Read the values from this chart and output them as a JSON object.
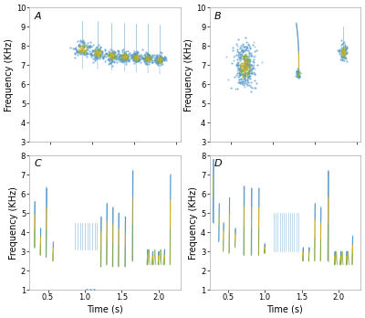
{
  "fig_width": 4.0,
  "fig_height": 3.48,
  "dpi": 100,
  "background_color": "#ffffff",
  "panel_label_fontsize": 8,
  "axis_label_fontsize": 7,
  "tick_fontsize": 6,
  "colors": {
    "blue": "#5599cc",
    "green": "#88aa44",
    "yellow": "#ccaa22",
    "orange": "#cc7722",
    "light_blue": "#99bbdd"
  },
  "panels": [
    {
      "label": "A",
      "xlim": [
        0.25,
        2.05
      ],
      "ylim": [
        3,
        10
      ],
      "xticks": [
        0.5,
        1.0,
        1.5,
        2.0
      ],
      "yticks": [
        3,
        4,
        5,
        6,
        7,
        8,
        9,
        10
      ],
      "show_xlabel": false,
      "show_ylabel": true
    },
    {
      "label": "B",
      "xlim": [
        0.25,
        2.05
      ],
      "ylim": [
        3,
        10
      ],
      "xticks": [
        0.5,
        1.0,
        1.5,
        2.0
      ],
      "yticks": [
        3,
        4,
        5,
        6,
        7,
        8,
        9,
        10
      ],
      "show_xlabel": false,
      "show_ylabel": true
    },
    {
      "label": "C",
      "xlim": [
        0.25,
        2.3
      ],
      "ylim": [
        1,
        8
      ],
      "xticks": [
        0.5,
        1.0,
        1.5,
        2.0
      ],
      "yticks": [
        1,
        2,
        3,
        4,
        5,
        6,
        7,
        8
      ],
      "show_xlabel": true,
      "show_ylabel": true
    },
    {
      "label": "D",
      "xlim": [
        0.25,
        2.3
      ],
      "ylim": [
        1,
        8
      ],
      "xticks": [
        0.5,
        1.0,
        1.5,
        2.0
      ],
      "yticks": [
        1,
        2,
        3,
        4,
        5,
        6,
        7,
        8
      ],
      "show_xlabel": true,
      "show_ylabel": true
    }
  ]
}
